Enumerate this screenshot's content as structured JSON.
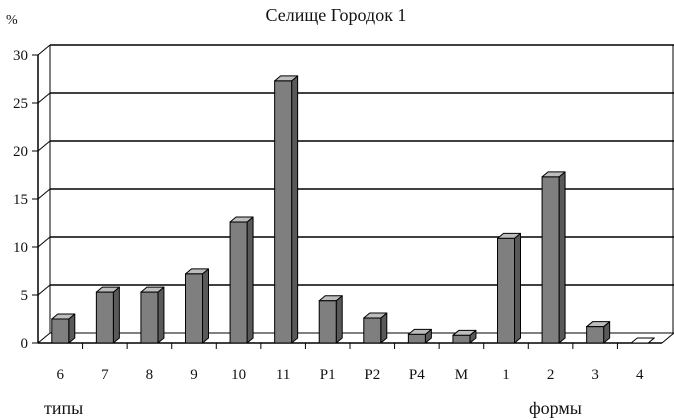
{
  "chart_data": {
    "type": "bar",
    "title": "Селище Городок 1",
    "ylabel": "%",
    "ylim": [
      0,
      30
    ],
    "yticks": [
      0,
      5,
      10,
      15,
      20,
      25,
      30
    ],
    "grid": true,
    "categories": [
      "6",
      "7",
      "8",
      "9",
      "10",
      "11",
      "P1",
      "P2",
      "P4",
      "M",
      "1",
      "2",
      "3",
      "4"
    ],
    "values": [
      2.5,
      5.3,
      5.3,
      7.2,
      12.6,
      27.3,
      4.4,
      2.6,
      0.9,
      0.8,
      10.9,
      17.3,
      1.7,
      0
    ],
    "group_labels": [
      "типы",
      "формы"
    ],
    "colors": {
      "bar_front": "#7f7f7f",
      "bar_side": "#595959",
      "bar_top": "#bdbdbd",
      "axis": "#000000"
    }
  }
}
